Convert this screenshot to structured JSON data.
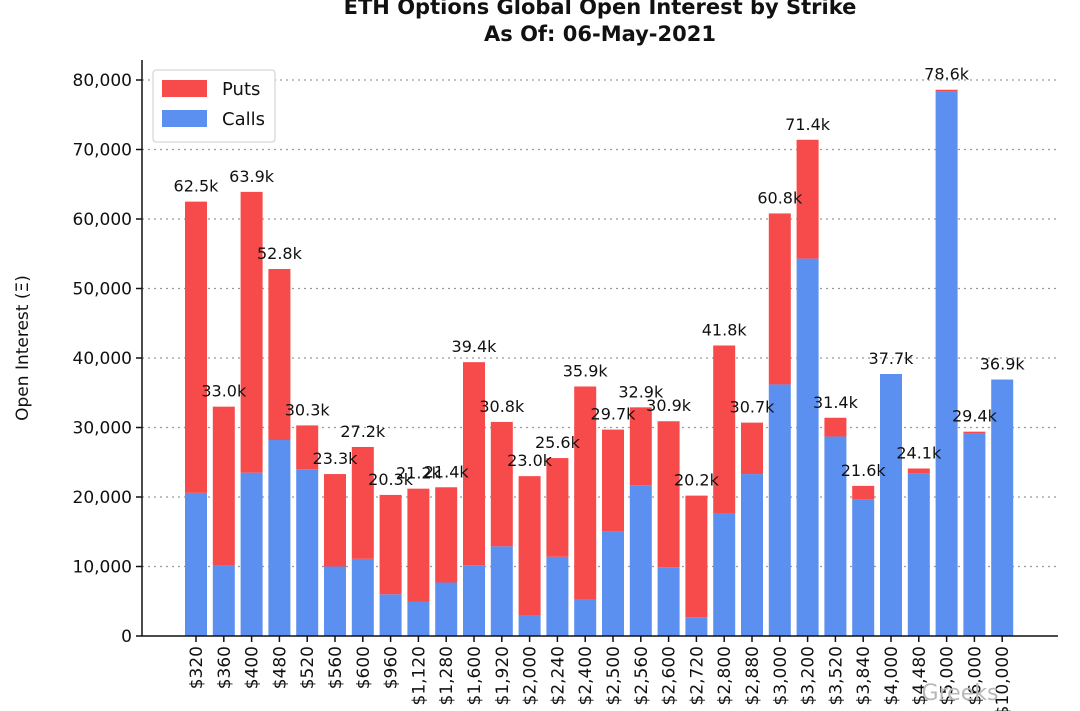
{
  "chart_data": {
    "type": "bar",
    "stacked": true,
    "title": "ETH Options Global Open Interest by Strike",
    "subtitle": "As Of: 06-May-2021",
    "xlabel": "",
    "ylabel": "Open Interest (Ξ)",
    "ylim": [
      0,
      82000
    ],
    "yticks": [
      0,
      10000,
      20000,
      30000,
      40000,
      50000,
      60000,
      70000,
      80000
    ],
    "ytick_labels": [
      "0",
      "10,000",
      "20,000",
      "30,000",
      "40,000",
      "50,000",
      "60,000",
      "70,000",
      "80,000"
    ],
    "grid": "horizontal-dotted",
    "legend_position": "top-left",
    "categories": [
      "$320",
      "$360",
      "$400",
      "$480",
      "$520",
      "$560",
      "$600",
      "$960",
      "$1,120",
      "$1,280",
      "$1,600",
      "$1,920",
      "$2,000",
      "$2,240",
      "$2,400",
      "$2,500",
      "$2,560",
      "$2,600",
      "$2,720",
      "$2,800",
      "$2,880",
      "$3,000",
      "$3,200",
      "$3,520",
      "$3,840",
      "$4,000",
      "$4,480",
      "$5,000",
      "$6,000",
      "$10,000"
    ],
    "series": [
      {
        "name": "Calls",
        "color": "#5b8ff0",
        "values": [
          20600,
          10100,
          23500,
          28200,
          24000,
          10000,
          11100,
          6000,
          4900,
          7700,
          10200,
          12900,
          2900,
          11400,
          5200,
          15000,
          21700,
          9900,
          2700,
          17700,
          23300,
          36200,
          54300,
          28700,
          19700,
          37700,
          23400,
          78300,
          29200,
          36900
        ]
      },
      {
        "name": "Puts",
        "color": "#f74a4a",
        "values": [
          41900,
          22900,
          40400,
          24600,
          6300,
          13300,
          16100,
          14300,
          16300,
          13700,
          29200,
          17900,
          20100,
          14200,
          30700,
          14700,
          11200,
          21000,
          17500,
          24100,
          7400,
          24600,
          17100,
          2700,
          1900,
          0,
          700,
          300,
          200,
          0
        ]
      }
    ],
    "totals": [
      62500,
      33000,
      63900,
      52800,
      30300,
      23300,
      27200,
      20300,
      21200,
      21400,
      39400,
      30800,
      23000,
      25600,
      35900,
      29700,
      32900,
      30900,
      20200,
      41800,
      30700,
      60800,
      71400,
      31400,
      21600,
      37700,
      24100,
      78600,
      29400,
      36900
    ],
    "data_labels": [
      "62.5k",
      "33.0k",
      "63.9k",
      "52.8k",
      "30.3k",
      "23.3k",
      "27.2k",
      "20.3k",
      "21.2k",
      "21.4k",
      "39.4k",
      "30.8k",
      "23.0k",
      "25.6k",
      "35.9k",
      "29.7k",
      "32.9k",
      "30.9k",
      "20.2k",
      "41.8k",
      "30.7k",
      "60.8k",
      "71.4k",
      "31.4k",
      "21.6k",
      "37.7k",
      "24.1k",
      "78.6k",
      "29.4k",
      "36.9k"
    ],
    "legend": [
      {
        "label": "Puts",
        "color": "#f74a4a"
      },
      {
        "label": "Calls",
        "color": "#5b8ff0"
      }
    ]
  },
  "watermark": "Greeks"
}
